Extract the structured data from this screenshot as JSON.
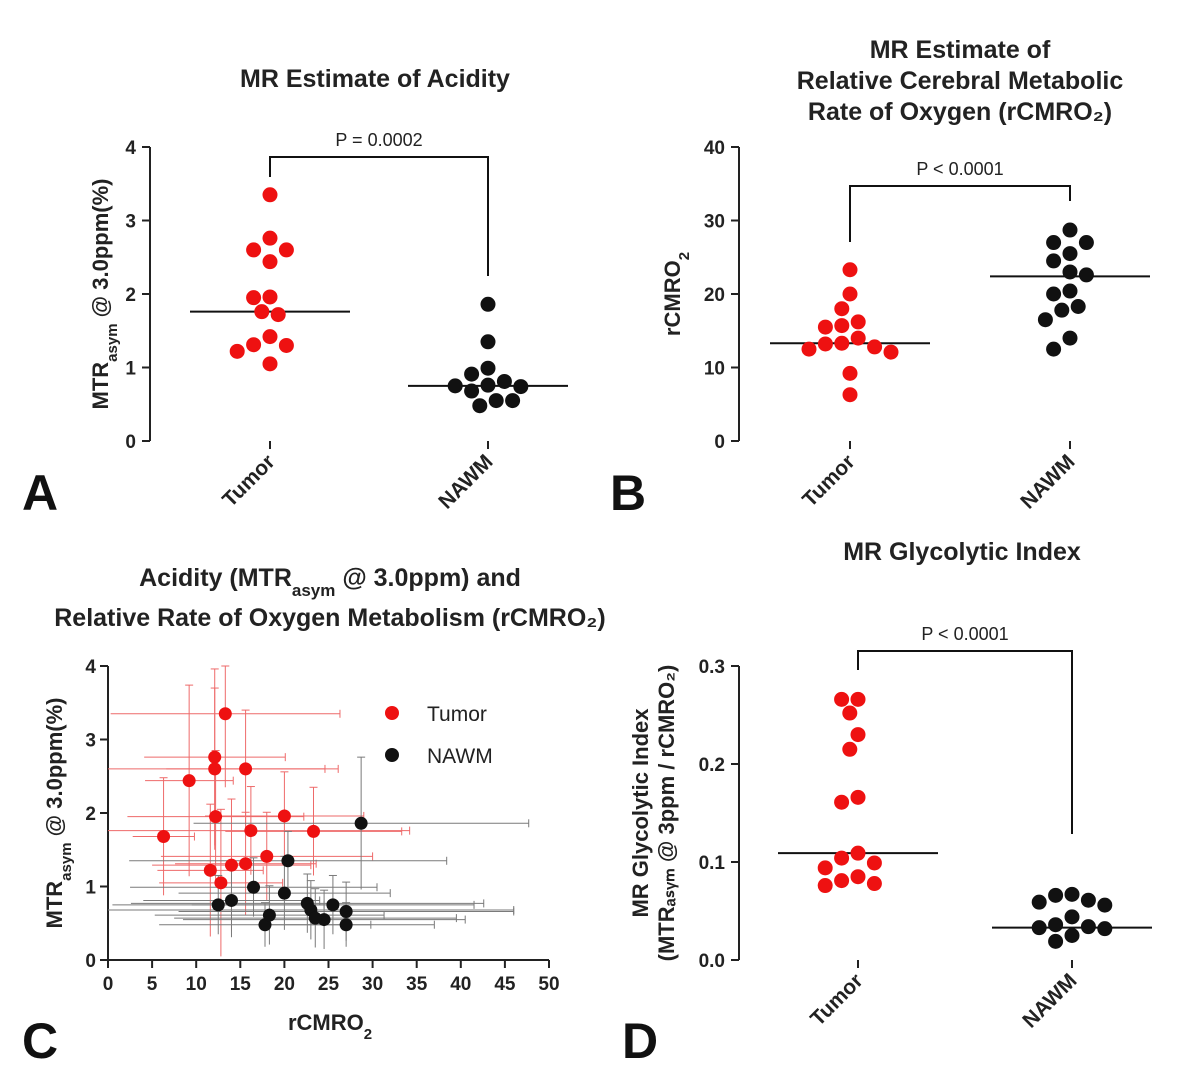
{
  "colors": {
    "tumor": "#ee1111",
    "nawm": "#111111",
    "axis": "#222222"
  },
  "chart_data": [
    {
      "panel": "A",
      "type": "scatter",
      "title": [
        "MR Estimate of Acidity"
      ],
      "ylabel": {
        "prefix": "MTR",
        "sub": "asym",
        "suffix": " @ 3.0ppm(%)"
      },
      "ylim": [
        0,
        4
      ],
      "yticks": [
        0,
        1,
        2,
        3,
        4
      ],
      "categories": [
        "Tumor",
        "NAWM"
      ],
      "groups": [
        {
          "name": "Tumor",
          "color": "tumor",
          "median": 1.76,
          "points": [
            3.35,
            2.76,
            2.6,
            2.6,
            2.44,
            1.96,
            1.95,
            1.76,
            1.72,
            1.42,
            1.31,
            1.3,
            1.22,
            1.05
          ]
        },
        {
          "name": "NAWM",
          "color": "nawm",
          "median": 0.75,
          "points": [
            1.86,
            1.35,
            0.99,
            0.91,
            0.81,
            0.76,
            0.75,
            0.74,
            0.68,
            0.66,
            0.61,
            0.55,
            0.55,
            0.48
          ]
        }
      ],
      "significance": {
        "text": "P = 0.0002",
        "bar_y": 3.8,
        "left_y": 3.8,
        "right_y": 2.22
      }
    },
    {
      "panel": "B",
      "type": "scatter",
      "title": [
        "MR Estimate of",
        "Relative Cerebral Metabolic",
        "Rate of Oxygen (rCMRO₂)"
      ],
      "ylabel": {
        "prefix": "rCMRO",
        "sub": "2",
        "suffix": ""
      },
      "ylim": [
        0,
        40
      ],
      "yticks": [
        0,
        10,
        20,
        30,
        40
      ],
      "categories": [
        "Tumor",
        "NAWM"
      ],
      "groups": [
        {
          "name": "Tumor",
          "color": "tumor",
          "median": 13.3,
          "points": [
            23.3,
            20.0,
            18.0,
            16.2,
            15.7,
            15.5,
            14.0,
            13.3,
            13.2,
            12.8,
            12.5,
            12.1,
            9.2,
            6.3
          ]
        },
        {
          "name": "NAWM",
          "color": "nawm",
          "median": 22.4,
          "points": [
            28.7,
            27.0,
            27.0,
            25.5,
            24.5,
            23.0,
            22.6,
            20.4,
            20.0,
            18.3,
            17.8,
            16.5,
            14.0,
            12.5
          ]
        }
      ],
      "significance": {
        "text": "P < 0.0001",
        "bar_y": 34.5,
        "left_y": 34.5,
        "right_y": 32.8
      }
    },
    {
      "panel": "C",
      "type": "scatter",
      "title": [
        "Acidity (MTRₐₛᵧₘ @ 3.0ppm) and",
        "Relative Rate of Oxygen Metabolism (rCMRO₂)"
      ],
      "xlabel": {
        "prefix": "rCMRO",
        "sub": "2",
        "suffix": ""
      },
      "ylabel": {
        "prefix": "MTR",
        "sub": "asym",
        "suffix": " @ 3.0ppm(%)"
      },
      "xlim": [
        0,
        50
      ],
      "ylim": [
        0,
        4
      ],
      "xticks": [
        0,
        5,
        10,
        15,
        20,
        25,
        30,
        35,
        40,
        45,
        50
      ],
      "yticks": [
        0,
        1,
        2,
        3,
        4
      ],
      "legend": [
        {
          "label": "Tumor",
          "color": "tumor"
        },
        {
          "label": "NAWM",
          "color": "nawm"
        }
      ],
      "legend_position": "top-right",
      "series": [
        {
          "name": "Tumor",
          "color": "tumor",
          "points": [
            {
              "x": 6.3,
              "y": 1.68,
              "xerr": 3.5,
              "yerr": 0.8
            },
            {
              "x": 9.2,
              "y": 2.44,
              "xerr": 5,
              "yerr": 1.3
            },
            {
              "x": 11.6,
              "y": 1.22,
              "xerr": 6,
              "yerr": 0.9
            },
            {
              "x": 12.1,
              "y": 2.76,
              "xerr": 8,
              "yerr": 1.2
            },
            {
              "x": 12.1,
              "y": 2.6,
              "xerr": 14,
              "yerr": 1.1
            },
            {
              "x": 12.2,
              "y": 1.95,
              "xerr": 10,
              "yerr": 0.9
            },
            {
              "x": 12.8,
              "y": 1.05,
              "xerr": 7,
              "yerr": 1.0
            },
            {
              "x": 13.3,
              "y": 3.35,
              "xerr": 13,
              "yerr": 1.0
            },
            {
              "x": 14.0,
              "y": 1.29,
              "xerr": 9,
              "yerr": 0.9
            },
            {
              "x": 15.6,
              "y": 2.6,
              "xerr": 9,
              "yerr": 0.8
            },
            {
              "x": 15.6,
              "y": 1.31,
              "xerr": 8,
              "yerr": 0.7
            },
            {
              "x": 16.2,
              "y": 1.76,
              "xerr": 18,
              "yerr": 0.6
            },
            {
              "x": 18.0,
              "y": 1.41,
              "xerr": 12,
              "yerr": 0.6
            },
            {
              "x": 20.0,
              "y": 1.96,
              "xerr": 9,
              "yerr": 0.6
            },
            {
              "x": 23.3,
              "y": 1.75,
              "xerr": 10,
              "yerr": 0.6
            }
          ]
        },
        {
          "name": "NAWM",
          "color": "nawm",
          "points": [
            {
              "x": 12.5,
              "y": 0.75,
              "xerr": 12,
              "yerr": 0.4
            },
            {
              "x": 14.0,
              "y": 0.81,
              "xerr": 10,
              "yerr": 0.5
            },
            {
              "x": 16.5,
              "y": 0.99,
              "xerr": 14,
              "yerr": 0.4
            },
            {
              "x": 17.8,
              "y": 0.48,
              "xerr": 12,
              "yerr": 0.3
            },
            {
              "x": 18.3,
              "y": 0.61,
              "xerr": 13,
              "yerr": 0.4
            },
            {
              "x": 20.0,
              "y": 0.91,
              "xerr": 12,
              "yerr": 0.5
            },
            {
              "x": 20.4,
              "y": 1.35,
              "xerr": 18,
              "yerr": 0.4
            },
            {
              "x": 22.6,
              "y": 0.77,
              "xerr": 20,
              "yerr": 0.4
            },
            {
              "x": 23.0,
              "y": 0.68,
              "xerr": 23,
              "yerr": 0.4
            },
            {
              "x": 24.5,
              "y": 0.55,
              "xerr": 16,
              "yerr": 0.4
            },
            {
              "x": 25.5,
              "y": 0.75,
              "xerr": 16,
              "yerr": 0.4
            },
            {
              "x": 27.0,
              "y": 0.66,
              "xerr": 19,
              "yerr": 0.4
            },
            {
              "x": 27.0,
              "y": 0.48,
              "xerr": 10,
              "yerr": 0.3
            },
            {
              "x": 28.7,
              "y": 1.86,
              "xerr": 19,
              "yerr": 0.9
            },
            {
              "x": 23.5,
              "y": 0.57,
              "xerr": 16,
              "yerr": 0.4
            }
          ]
        }
      ]
    },
    {
      "panel": "D",
      "type": "scatter",
      "title": [
        "MR Glycolytic Index"
      ],
      "ylabel_lines": [
        "MR Glycolytic Index",
        "(MTRₐₛᵧₘ @ 3ppm / rCMRO₂)"
      ],
      "ylim": [
        0,
        0.3
      ],
      "yticks": [
        "0.0",
        "0.1",
        "0.2",
        "0.3"
      ],
      "yticks_values": [
        0,
        0.1,
        0.2,
        0.3
      ],
      "categories": [
        "Tumor",
        "NAWM"
      ],
      "groups": [
        {
          "name": "Tumor",
          "color": "tumor",
          "median": 0.109,
          "points": [
            0.266,
            0.266,
            0.252,
            0.23,
            0.215,
            0.166,
            0.161,
            0.109,
            0.104,
            0.099,
            0.094,
            0.085,
            0.081,
            0.078,
            0.076
          ]
        },
        {
          "name": "NAWM",
          "color": "nawm",
          "median": 0.033,
          "points": [
            0.067,
            0.066,
            0.061,
            0.059,
            0.056,
            0.044,
            0.036,
            0.034,
            0.033,
            0.032,
            0.031,
            0.028,
            0.025,
            0.022,
            0.019
          ]
        }
      ],
      "significance": {
        "text": "P < 0.0001",
        "bar_y": 0.31,
        "left_y": 0.31,
        "right_y": 0.128
      }
    }
  ]
}
